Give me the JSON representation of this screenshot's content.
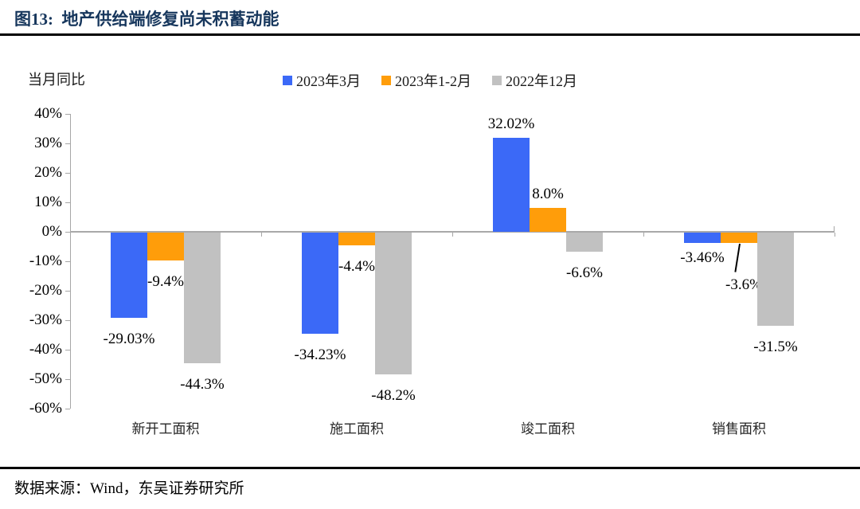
{
  "title": "图13:  地产供给端修复尚未积蓄动能",
  "footer": {
    "source_label": "数据来源：Wind，东吴证券研究所"
  },
  "colors": {
    "title_navy": "#17375D",
    "axis_gray": "#A6A6A6",
    "series_blue": "#3B69F7",
    "series_orange": "#FF9D0A",
    "series_gray": "#C1C1C1"
  },
  "chart_data": {
    "type": "bar",
    "title": "图13: 地产供给端修复尚未积蓄动能",
    "unit_label": "当月同比",
    "categories": [
      "新开工面积",
      "施工面积",
      "竣工面积",
      "销售面积"
    ],
    "series": [
      {
        "name": "2023年3月",
        "color": "#3B69F7",
        "values": [
          -29.03,
          -34.23,
          32.02,
          -3.46
        ],
        "labels": [
          "-29.03%",
          "-34.23%",
          "32.02%",
          "-3.46%"
        ]
      },
      {
        "name": "2023年1-2月",
        "color": "#FF9D0A",
        "values": [
          -9.4,
          -4.4,
          8.0,
          -3.6
        ],
        "labels": [
          "-9.4%",
          "-4.4%",
          "8.0%",
          "-3.6%"
        ]
      },
      {
        "name": "2022年12月",
        "color": "#C1C1C1",
        "values": [
          -44.3,
          -48.2,
          -6.6,
          -31.5
        ],
        "labels": [
          "-44.3%",
          "-48.2%",
          "-6.6%",
          "-31.5%"
        ]
      }
    ],
    "y_axis": {
      "min": -60,
      "max": 40,
      "step": 10,
      "tick_labels": [
        "40%",
        "30%",
        "20%",
        "10%",
        "0%",
        "-10%",
        "-20%",
        "-30%",
        "-40%",
        "-50%",
        "-60%"
      ]
    },
    "legend_position": "top",
    "grid": false,
    "xlabel": "",
    "ylabel": "当月同比"
  }
}
